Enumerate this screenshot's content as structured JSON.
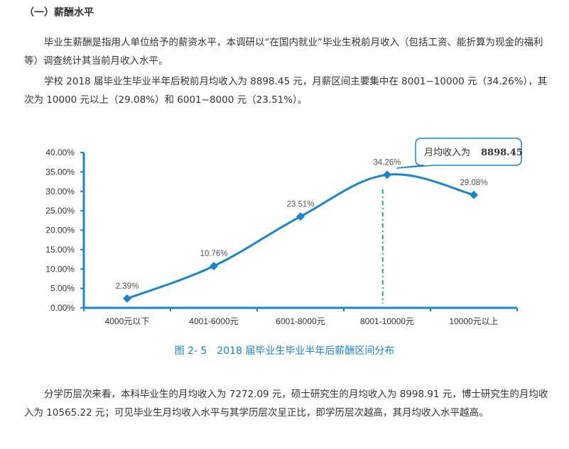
{
  "section": {
    "title": "（一）薪酬水平"
  },
  "paragraphs": {
    "p1": "毕业生薪酬是指用人单位给予的薪资水平，本调研以“在国内就业”毕业生税前月收入（包括工资、能折算为现金的福利等）调查统计其当前月收入水平。",
    "p2": "学校 2018 届毕业生毕业半年后税前月均收入为 8898.45 元，月薪区间主要集中在 8001−10000 元（34.26%），其次为 10000 元以上（29.08%）和 6001−8000 元（23.51%）。",
    "p3": "分学历层次来看，本科毕业生的月均收入为 7272.09 元，硕士研究生的月均收入为 8998.91 元，博士研究生的月均收入为 10565.22 元；可见毕业生月均收入水平与其学历层次呈正比，即学历层次越高，其月均收入水平越高。"
  },
  "chart_data": {
    "type": "line",
    "categories": [
      "4000元以下",
      "4001-6000元",
      "6001-8000元",
      "8001-10000元",
      "10000元以上"
    ],
    "values": [
      2.39,
      10.76,
      23.51,
      34.26,
      29.08
    ],
    "value_labels": [
      "2.39%",
      "10.76%",
      "23.51%",
      "34.26%",
      "29.08%"
    ],
    "y_ticks": [
      "0.00%",
      "5.00%",
      "10.00%",
      "15.00%",
      "20.00%",
      "25.00%",
      "30.00%",
      "35.00%",
      "40.00%"
    ],
    "ylim": [
      0,
      40
    ],
    "mean_marker": {
      "label": "月均收入为",
      "value": "8898.45",
      "x_value": 8898.45
    },
    "color": "#1a86c8",
    "caption": "图 2- 5　2018 届毕业生毕业半年后薪酬区间分布"
  }
}
